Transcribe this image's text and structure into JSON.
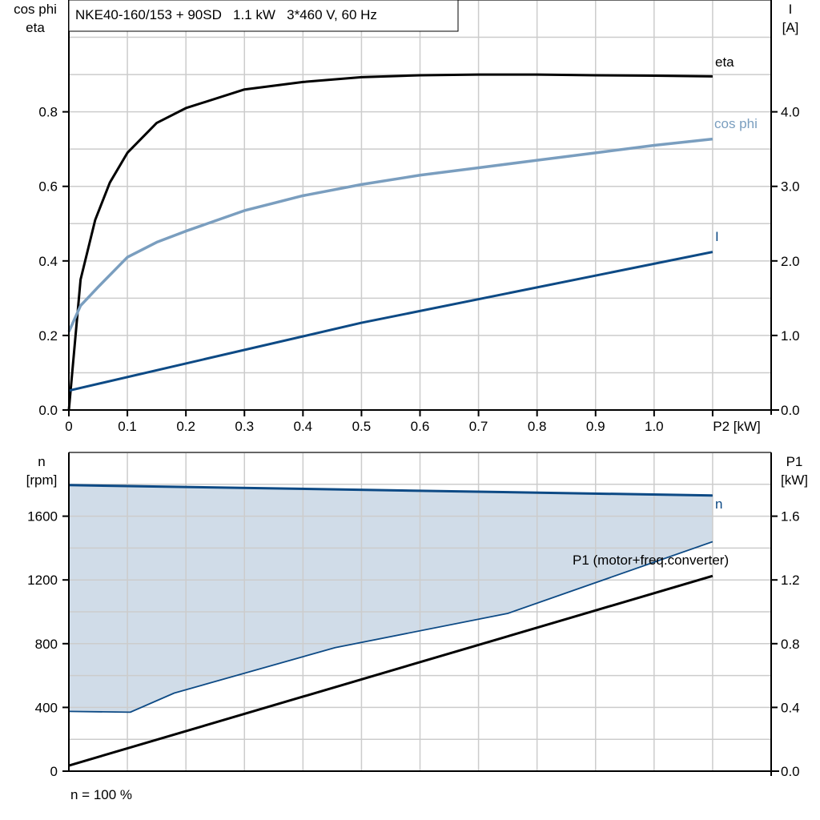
{
  "title": "NKE40-160/153 + 90SD   1.1 kW   3*460 V, 60 Hz",
  "footer_note": "n = 100 %",
  "colors": {
    "eta": "#000000",
    "cos_phi": "#7a9ebf",
    "I": "#0d4a85",
    "n": "#0d4a85",
    "P1": "#000000",
    "band_fill": "#d0dce8",
    "grid": "#cccccc"
  },
  "chart_data": [
    {
      "type": "line",
      "x_label": "P2 [kW]",
      "x_ticks": [
        "0",
        "0.1",
        "0.2",
        "0.3",
        "0.4",
        "0.5",
        "0.6",
        "0.7",
        "0.8",
        "0.9",
        "1.0"
      ],
      "xlim": [
        0,
        1.2
      ],
      "y_label_left": [
        "cos phi",
        "eta"
      ],
      "y_ticks_left": [
        "0.0",
        "0.2",
        "0.4",
        "0.6",
        "0.8"
      ],
      "ylim_left": [
        0,
        1.1
      ],
      "y_label_right": [
        "I",
        "[A]"
      ],
      "y_ticks_right": [
        "0.0",
        "1.0",
        "2.0",
        "3.0",
        "4.0"
      ],
      "ylim_right": [
        0,
        5.5
      ],
      "grid": true,
      "series": [
        {
          "name": "eta",
          "axis": "left",
          "x": [
            0,
            0.02,
            0.045,
            0.07,
            0.1,
            0.15,
            0.2,
            0.3,
            0.4,
            0.5,
            0.6,
            0.7,
            0.8,
            0.9,
            1.0,
            1.1
          ],
          "y": [
            0,
            0.35,
            0.51,
            0.61,
            0.69,
            0.77,
            0.81,
            0.86,
            0.88,
            0.893,
            0.898,
            0.9,
            0.9,
            0.898,
            0.897,
            0.895
          ]
        },
        {
          "name": "cos phi",
          "axis": "left",
          "x": [
            0,
            0.02,
            0.05,
            0.1,
            0.15,
            0.2,
            0.3,
            0.4,
            0.5,
            0.6,
            0.7,
            0.8,
            0.9,
            1.0,
            1.1
          ],
          "y": [
            0.21,
            0.28,
            0.33,
            0.41,
            0.45,
            0.48,
            0.535,
            0.575,
            0.605,
            0.63,
            0.65,
            0.67,
            0.69,
            0.71,
            0.727
          ]
        },
        {
          "name": "I",
          "axis": "right",
          "x": [
            0,
            0.5,
            1.1
          ],
          "y": [
            0.26,
            1.17,
            2.12
          ]
        }
      ]
    },
    {
      "type": "line",
      "xlim": [
        0,
        1.2
      ],
      "y_label_left": [
        "n",
        "[rpm]"
      ],
      "y_ticks_left": [
        "0",
        "400",
        "800",
        "1200",
        "1600"
      ],
      "ylim_left": [
        0,
        2000
      ],
      "y_label_right": [
        "P1",
        "[kW]"
      ],
      "y_ticks_right": [
        "0.0",
        "0.4",
        "0.8",
        "1.2",
        "1.6"
      ],
      "ylim_right": [
        0,
        2.0
      ],
      "grid": true,
      "series": [
        {
          "name": "n",
          "axis": "left",
          "x": [
            0,
            1.1
          ],
          "y": [
            1795,
            1730
          ]
        },
        {
          "name": "n lower limit",
          "axis": "left",
          "x": [
            0,
            0.105,
            0.18,
            0.455,
            0.75,
            1.1
          ],
          "y": [
            375,
            370,
            490,
            775,
            990,
            1440
          ]
        },
        {
          "name": "P1 (motor+freq.converter)",
          "axis": "right",
          "x": [
            0,
            1.1
          ],
          "y": [
            0.035,
            1.225
          ]
        }
      ]
    }
  ]
}
